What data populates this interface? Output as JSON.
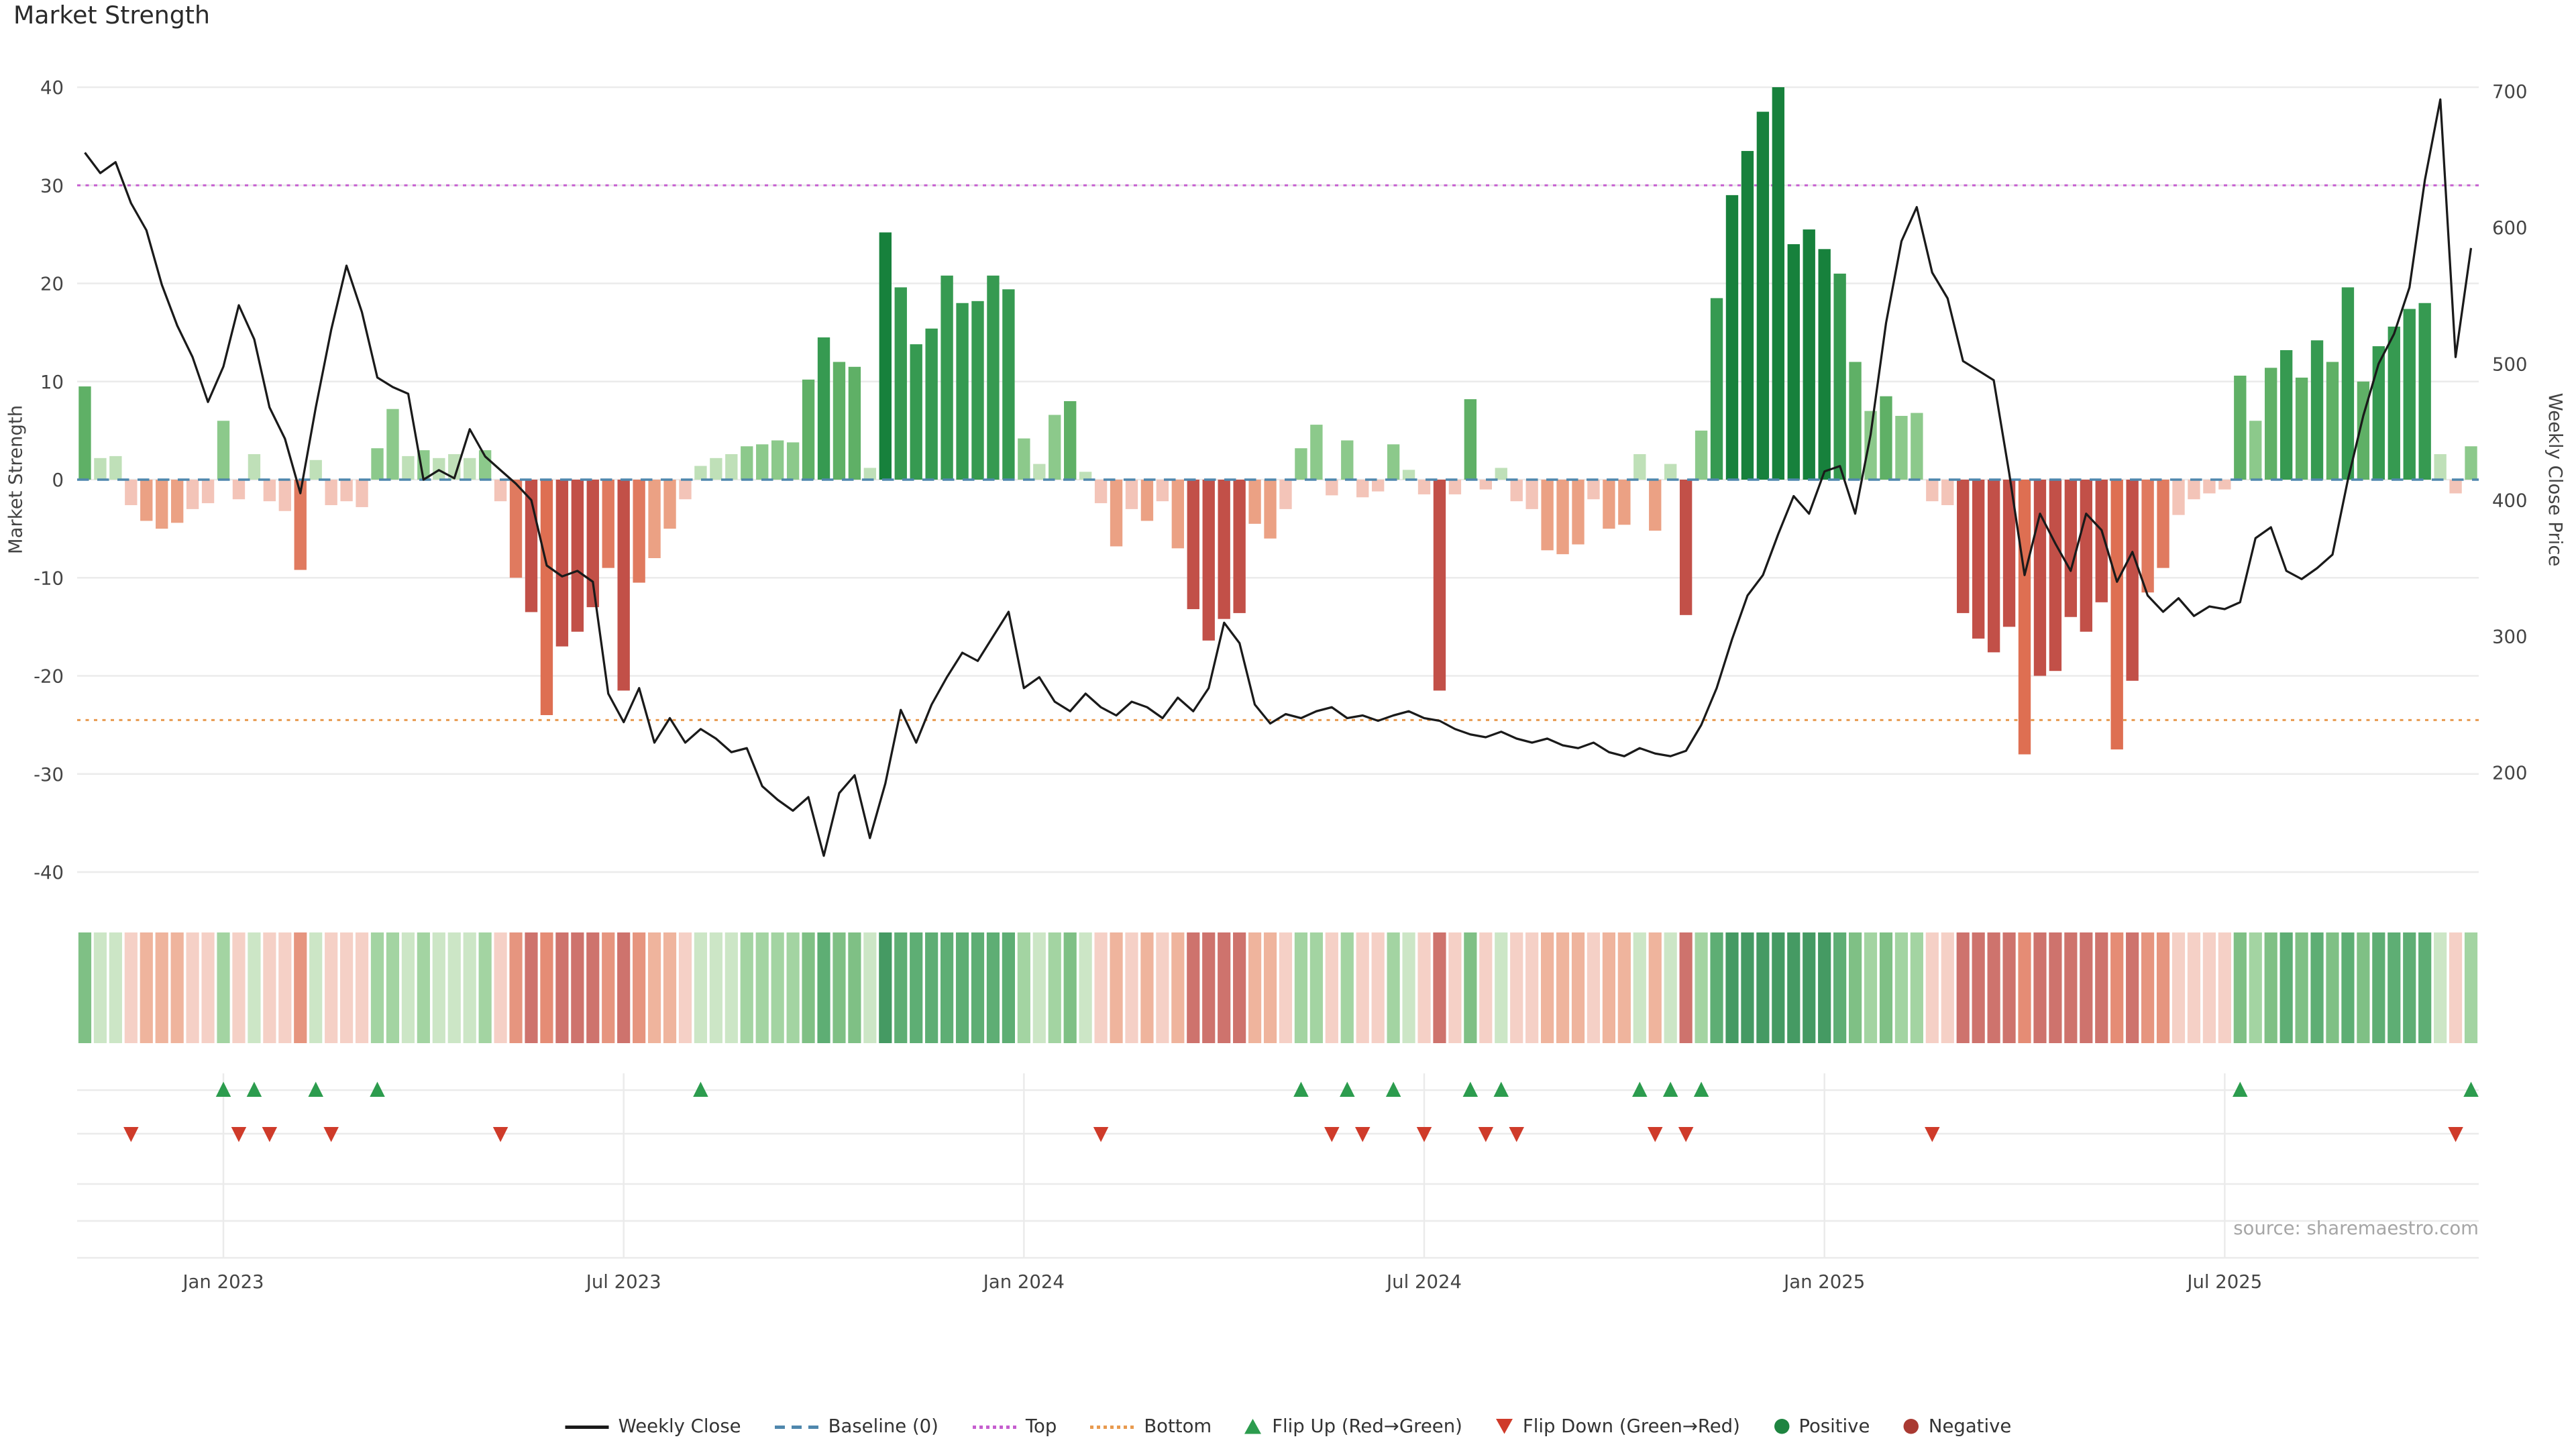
{
  "title": "Market Strength",
  "source": "source: sharemaestro.com",
  "legend": {
    "weekly_close": "Weekly Close",
    "baseline": "Baseline (0)",
    "top": "Top",
    "bottom": "Bottom",
    "flip_up": "Flip Up (Red→Green)",
    "flip_down": "Flip Down (Green→Red)",
    "positive": "Positive",
    "negative": "Negative"
  },
  "colors": {
    "line": "#1a1a1a",
    "baseline": "#4f87ad",
    "top": "#c65ecf",
    "bottom": "#e89a4f",
    "flip_up": "#2c9c4e",
    "flip_down": "#cf3b2a",
    "positive_dot": "#1e8440",
    "negative_dot": "#a93a32",
    "grid": "#ebebeb",
    "bar_positive": [
      "#bfe0b8",
      "#8cc98b",
      "#5fb066",
      "#369a51",
      "#17813c"
    ],
    "bar_negative": [
      "#f3c4b8",
      "#eba184",
      "#e07a5f",
      "#c25048",
      "#de6f52"
    ]
  },
  "chart_data": {
    "type": "bar+line combo (weekly), with heatmap strip and flip markers",
    "title": "Market Strength",
    "ylabel_left": "Market Strength",
    "ylabel_right": "Weekly Close Price",
    "yticks_left": [
      40,
      30,
      20,
      10,
      0,
      -10,
      -20,
      -30,
      -40
    ],
    "yticks_right": [
      700,
      600,
      500,
      400,
      300,
      200
    ],
    "ylim_left": [
      -40,
      40
    ],
    "ylim_right": [
      127,
      703
    ],
    "baseline": 0,
    "top_threshold": 30,
    "bottom_threshold": -24.5,
    "grid": true,
    "legend_position": "bottom center",
    "x_ticks": [
      {
        "index": 9,
        "label": "Jan 2023"
      },
      {
        "index": 35,
        "label": "Jul 2023"
      },
      {
        "index": 61,
        "label": "Jan 2024"
      },
      {
        "index": 87,
        "label": "Jul 2024"
      },
      {
        "index": 113,
        "label": "Jan 2025"
      },
      {
        "index": 139,
        "label": "Jul 2025"
      }
    ],
    "series": [
      {
        "name": "Market Strength",
        "type": "bar",
        "axis": "left",
        "values": [
          9.5,
          2.2,
          2.4,
          -2.6,
          -4.2,
          -5.0,
          -4.4,
          -3.0,
          -2.4,
          6.0,
          -2.0,
          2.6,
          -2.2,
          -3.2,
          -9.2,
          2.0,
          -2.6,
          -2.2,
          -2.8,
          3.2,
          7.2,
          2.4,
          3.0,
          2.2,
          2.6,
          2.2,
          3.0,
          -2.2,
          -10.0,
          -13.5,
          -24.0,
          -17.0,
          -15.5,
          -13.0,
          -9.0,
          -21.5,
          -10.5,
          -8.0,
          -5.0,
          -2.0,
          1.4,
          2.2,
          2.6,
          3.4,
          3.6,
          4.0,
          3.8,
          10.2,
          14.5,
          12.0,
          11.5,
          1.2,
          25.2,
          19.6,
          13.8,
          15.4,
          20.8,
          18.0,
          18.2,
          20.8,
          19.4,
          4.2,
          1.6,
          6.6,
          8.0,
          0.8,
          -2.4,
          -6.8,
          -3.0,
          -4.2,
          -2.2,
          -7.0,
          -13.2,
          -16.4,
          -14.2,
          -13.6,
          -4.5,
          -6.0,
          -3.0,
          3.2,
          5.6,
          -1.6,
          4.0,
          -1.8,
          -1.2,
          3.6,
          1.0,
          -1.5,
          -21.5,
          -1.5,
          8.2,
          -1.0,
          1.2,
          -2.2,
          -3.0,
          -7.2,
          -7.6,
          -6.6,
          -2.0,
          -5.0,
          -4.6,
          2.6,
          -5.2,
          1.6,
          -13.8,
          5.0,
          18.5,
          29.0,
          33.5,
          37.5,
          40.0,
          24.0,
          25.5,
          23.5,
          21.0,
          12.0,
          7.0,
          8.5,
          6.5,
          6.8,
          -2.2,
          -2.6,
          -13.6,
          -16.2,
          -17.6,
          -15.0,
          -28.0,
          -20.0,
          -19.5,
          -14.0,
          -15.5,
          -12.5,
          -27.5,
          -20.5,
          -11.5,
          -9.0,
          -3.6,
          -2.0,
          -1.4,
          -1.0,
          10.6,
          6.0,
          11.4,
          13.2,
          10.4,
          14.2,
          12.0,
          19.6,
          10.0,
          13.6,
          15.6,
          17.4,
          18.0,
          2.6,
          -1.4,
          3.4
        ]
      },
      {
        "name": "Weekly Close",
        "type": "line",
        "axis": "right",
        "values": [
          655,
          640,
          648,
          618,
          598,
          558,
          528,
          505,
          472,
          498,
          543,
          518,
          468,
          445,
          405,
          468,
          525,
          572,
          538,
          490,
          483,
          478,
          415,
          422,
          416,
          452,
          432,
          422,
          412,
          400,
          352,
          344,
          348,
          340,
          258,
          237,
          262,
          222,
          240,
          222,
          232,
          225,
          215,
          218,
          190,
          180,
          172,
          182,
          139,
          185,
          198,
          152,
          192,
          246,
          222,
          250,
          270,
          288,
          282,
          300,
          318,
          262,
          270,
          252,
          245,
          258,
          248,
          242,
          252,
          248,
          240,
          255,
          245,
          262,
          310,
          295,
          250,
          236,
          243,
          240,
          245,
          248,
          240,
          242,
          238,
          242,
          245,
          240,
          238,
          232,
          228,
          226,
          230,
          225,
          222,
          225,
          220,
          218,
          222,
          215,
          212,
          218,
          214,
          212,
          216,
          235,
          262,
          298,
          330,
          345,
          375,
          403,
          390,
          421,
          425,
          390,
          448,
          530,
          590,
          615,
          567,
          548,
          502,
          495,
          488,
          420,
          345,
          390,
          368,
          348,
          390,
          378,
          340,
          362,
          330,
          318,
          328,
          315,
          322,
          320,
          325,
          372,
          380,
          348,
          342,
          350,
          360,
          415,
          462,
          500,
          522,
          556,
          635,
          694,
          505,
          585
        ]
      }
    ]
  }
}
